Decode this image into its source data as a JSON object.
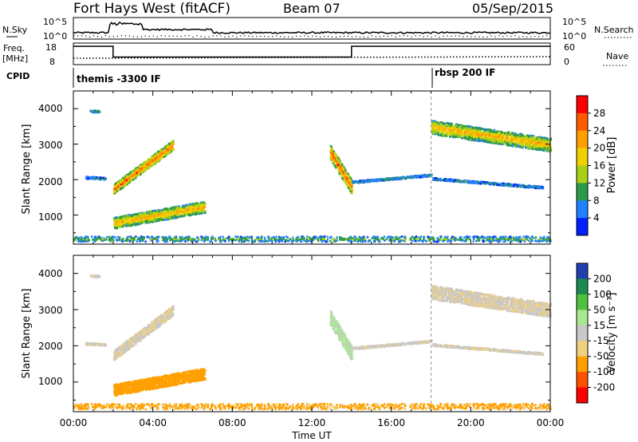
{
  "header": {
    "station": "Fort Hays West (fitACF)",
    "beam": "Beam 07",
    "date": "05/Sep/2015"
  },
  "strip": {
    "nsky_label": "N.Sky",
    "nsky_ticks": [
      "10^5",
      "10^0"
    ],
    "nsearch_label": "N.Search",
    "nsearch_ticks": [
      "10^5",
      "10^0"
    ],
    "freq_label_1": "Freq.",
    "freq_label_2": "[MHz]",
    "freq_ticks": [
      "18",
      "8"
    ],
    "nave_label": "Nave",
    "nave_ticks": [
      "60",
      "0"
    ],
    "cpid_label": "CPID",
    "cpid_1": "themis -3300 IF",
    "cpid_2": "rbsp 200 IF"
  },
  "panels": {
    "ylabel": "Slant Range [km]",
    "yticks": [
      "4000",
      "3000",
      "2000",
      "1000"
    ],
    "xticks": [
      "00:00",
      "04:00",
      "08:00",
      "12:00",
      "16:00",
      "20:00",
      "00:00"
    ],
    "xlabel": "Time UT"
  },
  "colorbars": {
    "power_label": "Power [dB]",
    "power_ticks": [
      "28",
      "24",
      "20",
      "16",
      "12",
      "8",
      "4"
    ],
    "power_colors": [
      "#ff0000",
      "#ff5a00",
      "#ffa000",
      "#f0d000",
      "#a8d018",
      "#2a9a4a",
      "#2080ff",
      "#0020ff"
    ],
    "velocity_label": "Velocity [m s⁻¹]",
    "velocity_ticks": [
      "200",
      "100",
      "50",
      "15",
      "-15",
      "-50",
      "-100",
      "-200"
    ],
    "velocity_colors": [
      "#2040b0",
      "#1a8a50",
      "#50c040",
      "#a8e890",
      "#c8c8c8",
      "#f0d080",
      "#ffa000",
      "#ff5000",
      "#ff0000"
    ]
  },
  "chart_data": {
    "type": "heatmap",
    "x_range_hours": [
      0,
      24
    ],
    "y_range_km": [
      180,
      4500
    ],
    "frequency_mhz": [
      {
        "start": 0,
        "end": 2,
        "value": 18
      },
      {
        "start": 2,
        "end": 14,
        "value": 10.5
      },
      {
        "start": 14,
        "end": 24,
        "value": 18
      }
    ],
    "cpid_changes": [
      {
        "time": 0,
        "label": "themis -3300 IF"
      },
      {
        "time": 18,
        "label": "rbsp 200 IF"
      }
    ],
    "echo_regions": [
      {
        "name": "far-early",
        "t0": 0.8,
        "t1": 1.3,
        "r0": 3950,
        "r1": 3950,
        "w": 60,
        "power": 8,
        "vel": -10
      },
      {
        "name": "near-early",
        "t0": 0.6,
        "t1": 1.6,
        "r0": 2080,
        "r1": 2050,
        "w": 60,
        "power": 8,
        "vel": -5
      },
      {
        "name": "band-upper",
        "t0": 2.0,
        "t1": 5.0,
        "r0": 1750,
        "r1": 3000,
        "w": 280,
        "power": 22,
        "vel": -10
      },
      {
        "name": "band-lower",
        "t0": 2.0,
        "t1": 6.6,
        "r0": 800,
        "r1": 1250,
        "w": 320,
        "power": 18,
        "vel": -75
      },
      {
        "name": "streak-13",
        "t0": 12.9,
        "t1": 14.0,
        "r0": 2800,
        "r1": 1800,
        "w": 400,
        "power": 22,
        "vel": 20
      },
      {
        "name": "faint-mid",
        "t0": 14.0,
        "t1": 18.0,
        "r0": 1950,
        "r1": 2150,
        "w": 60,
        "power": 8,
        "vel": -5
      },
      {
        "name": "late-far",
        "t0": 18.0,
        "t1": 24.0,
        "r0": 3500,
        "r1": 3000,
        "w": 380,
        "power": 18,
        "vel": -10
      },
      {
        "name": "late-mid",
        "t0": 18.0,
        "t1": 23.6,
        "r0": 2050,
        "r1": 1800,
        "w": 60,
        "power": 8,
        "vel": -5
      },
      {
        "name": "ground-band",
        "t0": 0.0,
        "t1": 24.0,
        "r0": 350,
        "r1": 350,
        "w": 150,
        "power": 10,
        "vel": -60
      }
    ]
  }
}
